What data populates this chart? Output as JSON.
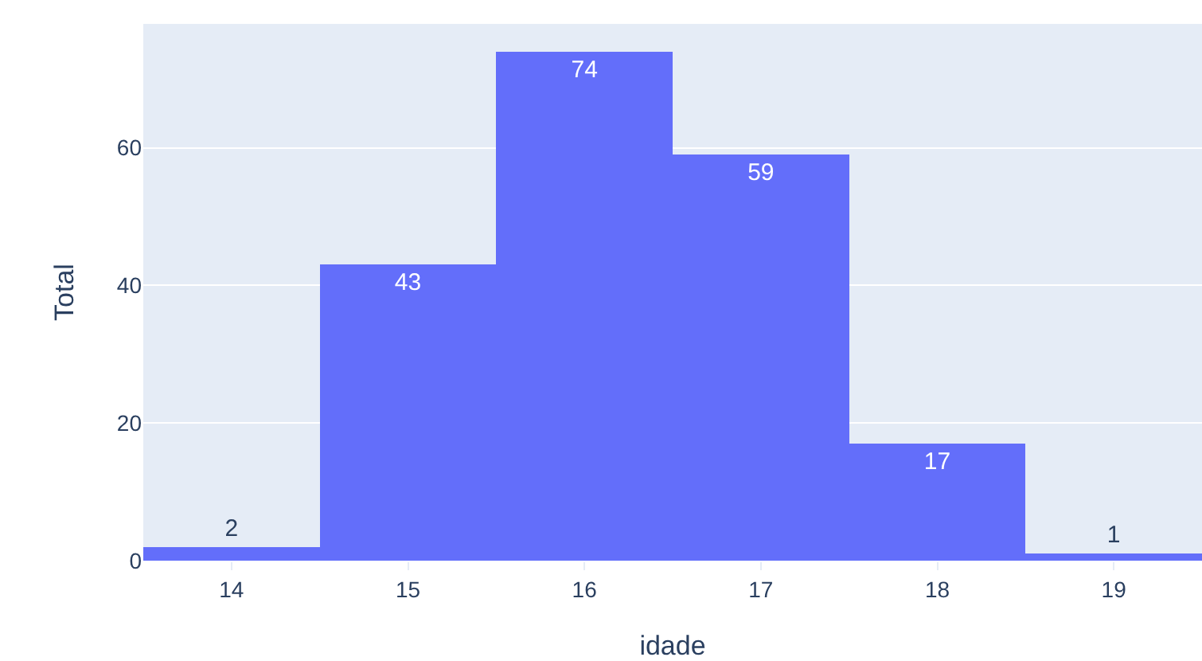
{
  "chart_data": {
    "type": "histogram",
    "xlabel": "idade",
    "ylabel": "Total",
    "bins": [
      13.5,
      14.5,
      15.5,
      16.5,
      17.5,
      18.5,
      19.5
    ],
    "values": [
      2,
      43,
      74,
      59,
      17,
      1
    ],
    "color": "#636efa",
    "data_labels": true,
    "xlim": [
      13.5,
      19.5
    ],
    "xticks": [
      14,
      15,
      16,
      17,
      18,
      19
    ],
    "ylim": [
      0,
      78
    ],
    "yticks": [
      0,
      20,
      40,
      60
    ],
    "grid": "y"
  }
}
